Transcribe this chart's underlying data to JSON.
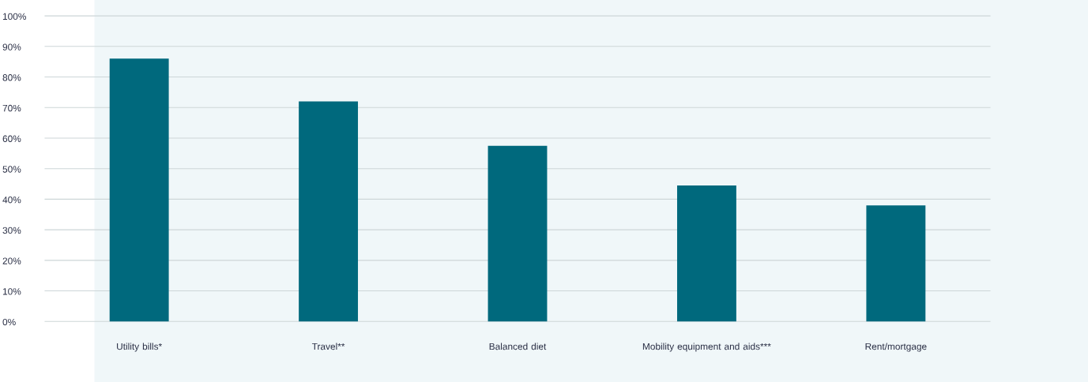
{
  "chart_data": {
    "type": "bar",
    "categories": [
      "Utility bills*",
      "Travel**",
      "Balanced diet",
      "Mobility equipment and aids***",
      "Rent/mortgage"
    ],
    "values": [
      86,
      72,
      57.5,
      44.5,
      38
    ],
    "color": "#00697d",
    "ylim": [
      0,
      100
    ],
    "yticks": [
      {
        "value": 0,
        "label": "0%"
      },
      {
        "value": 10,
        "label": "10%"
      },
      {
        "value": 20,
        "label": "20%"
      },
      {
        "value": 30,
        "label": "30%"
      },
      {
        "value": 40,
        "label": "40%"
      },
      {
        "value": 50,
        "label": "50%"
      },
      {
        "value": 60,
        "label": "60%"
      },
      {
        "value": 70,
        "label": "70%"
      },
      {
        "value": 80,
        "label": "80%"
      },
      {
        "value": 90,
        "label": "90%"
      },
      {
        "value": 100,
        "label": "100%"
      }
    ],
    "grid": "y"
  }
}
